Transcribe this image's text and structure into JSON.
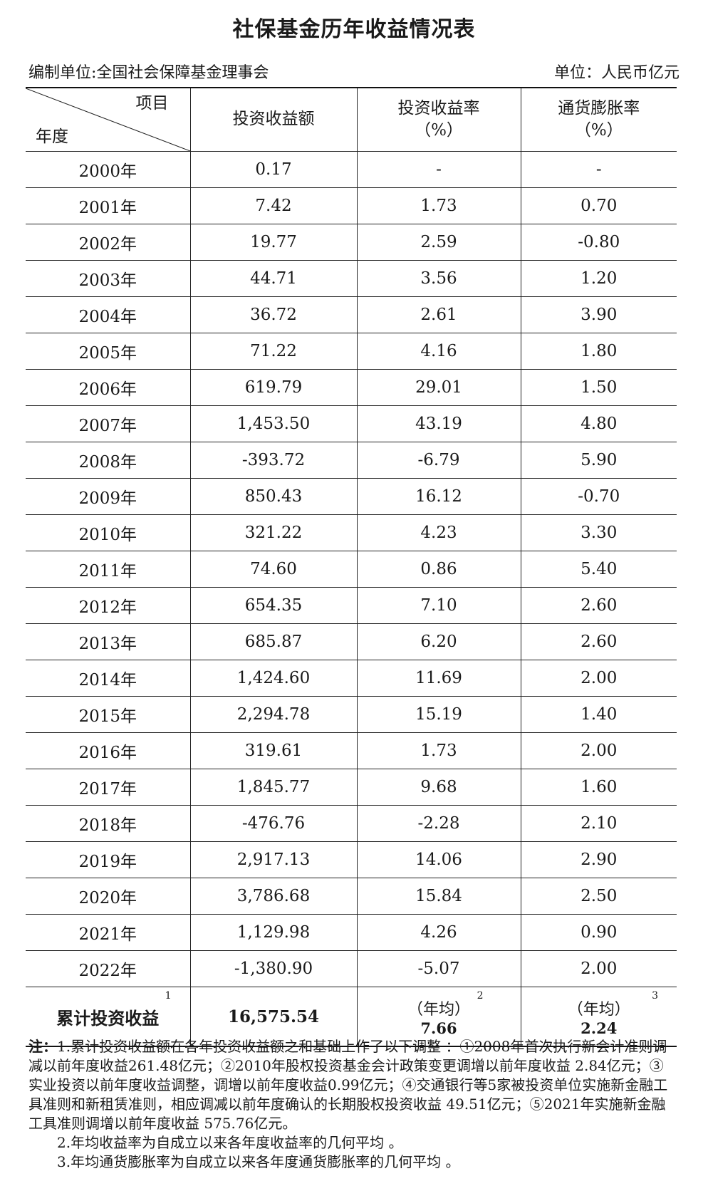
{
  "title": "社保基金历年收益情况表",
  "compiler": "编制单位:全国社会保障基金理事会",
  "unit": "单位：人民币亿元",
  "headers": {
    "item": "项目",
    "year": "年度",
    "col1": "投资收益额",
    "col2_line1": "投资收益率",
    "col2_line2": "（%）",
    "col3_line1": "通货膨胀率",
    "col3_line2": "（%）"
  },
  "rows": [
    {
      "year": "2000年",
      "income": "0.17",
      "rate": "-",
      "inflation": "-"
    },
    {
      "year": "2001年",
      "income": "7.42",
      "rate": "1.73",
      "inflation": "0.70"
    },
    {
      "year": "2002年",
      "income": "19.77",
      "rate": "2.59",
      "inflation": "-0.80"
    },
    {
      "year": "2003年",
      "income": "44.71",
      "rate": "3.56",
      "inflation": "1.20"
    },
    {
      "year": "2004年",
      "income": "36.72",
      "rate": "2.61",
      "inflation": "3.90"
    },
    {
      "year": "2005年",
      "income": "71.22",
      "rate": "4.16",
      "inflation": "1.80"
    },
    {
      "year": "2006年",
      "income": "619.79",
      "rate": "29.01",
      "inflation": "1.50"
    },
    {
      "year": "2007年",
      "income": "1,453.50",
      "rate": "43.19",
      "inflation": "4.80"
    },
    {
      "year": "2008年",
      "income": "-393.72",
      "rate": "-6.79",
      "inflation": "5.90"
    },
    {
      "year": "2009年",
      "income": "850.43",
      "rate": "16.12",
      "inflation": "-0.70"
    },
    {
      "year": "2010年",
      "income": "321.22",
      "rate": "4.23",
      "inflation": "3.30"
    },
    {
      "year": "2011年",
      "income": "74.60",
      "rate": "0.86",
      "inflation": "5.40"
    },
    {
      "year": "2012年",
      "income": "654.35",
      "rate": "7.10",
      "inflation": "2.60"
    },
    {
      "year": "2013年",
      "income": "685.87",
      "rate": "6.20",
      "inflation": "2.60"
    },
    {
      "year": "2014年",
      "income": "1,424.60",
      "rate": "11.69",
      "inflation": "2.00"
    },
    {
      "year": "2015年",
      "income": "2,294.78",
      "rate": "15.19",
      "inflation": "1.40"
    },
    {
      "year": "2016年",
      "income": "319.61",
      "rate": "1.73",
      "inflation": "2.00"
    },
    {
      "year": "2017年",
      "income": "1,845.77",
      "rate": "9.68",
      "inflation": "1.60"
    },
    {
      "year": "2018年",
      "income": "-476.76",
      "rate": "-2.28",
      "inflation": "2.10"
    },
    {
      "year": "2019年",
      "income": "2,917.13",
      "rate": "14.06",
      "inflation": "2.90"
    },
    {
      "year": "2020年",
      "income": "3,786.68",
      "rate": "15.84",
      "inflation": "2.50"
    },
    {
      "year": "2021年",
      "income": "1,129.98",
      "rate": "4.26",
      "inflation": "0.90"
    },
    {
      "year": "2022年",
      "income": "-1,380.90",
      "rate": "-5.07",
      "inflation": "2.00"
    }
  ],
  "total": {
    "label": "累计投资收益",
    "label_sup": "1",
    "income": "16,575.54",
    "rate_label": "（年均）",
    "rate_sup": "2",
    "rate": "7.66",
    "inflation_label": "（年均）",
    "inflation_sup": "3",
    "inflation": "2.24"
  },
  "notes": {
    "prefix": "注：",
    "note1": "1.累计投资收益额在各年投资收益额之和基础上作了以下调整 ：①2008年首次执行新会计准则调减以前年度收益261.48亿元；②2010年股权投资基金会计政策变更调增以前年度收益 2.84亿元；③实业投资以前年度收益调整，调增以前年度收益0.99亿元；④交通银行等5家被投资单位实施新金融工具准则和新租赁准则，相应调减以前年度确认的长期股权投资收益 49.51亿元；⑤2021年实施新金融工具准则调增以前年度收益 575.76亿元。",
    "note2": "2.年均收益率为自成立以来各年度收益率的几何平均 。",
    "note3": "3.年均通货膨胀率为自成立以来各年度通货膨胀率的几何平均 。"
  }
}
